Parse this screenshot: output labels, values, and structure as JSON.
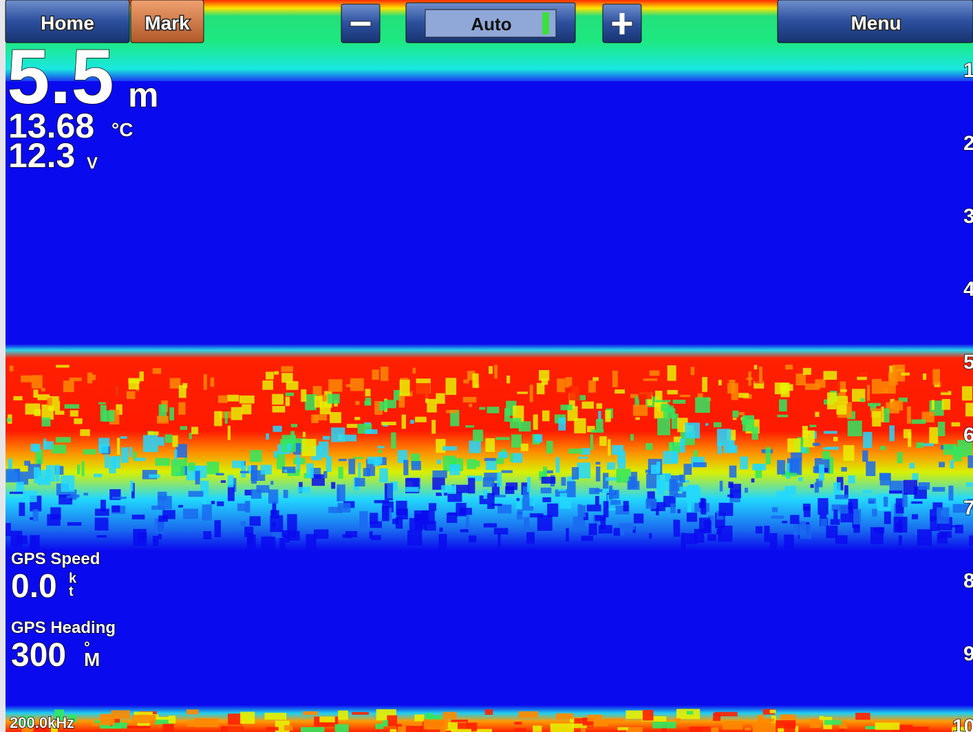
{
  "toolbar": {
    "home": "Home",
    "mark": "Mark",
    "mode": "Auto",
    "menu": "Menu"
  },
  "readouts": {
    "depth": {
      "value": "5.5",
      "unit": "m"
    },
    "temperature": {
      "value": "13.68",
      "unit": "°C"
    },
    "voltage": {
      "value": "12.3",
      "unit": "V"
    }
  },
  "gps_speed": {
    "label": "GPS Speed",
    "value": "0.0",
    "unit_top": "k",
    "unit_bottom": "t"
  },
  "gps_heading": {
    "label": "GPS Heading",
    "value": "300",
    "unit_top": "°",
    "unit_bottom": "M"
  },
  "frequency": "200.0kHz",
  "depth_scale": [
    "1",
    "2",
    "3",
    "4",
    "5",
    "6",
    "7",
    "8",
    "9",
    "10"
  ]
}
